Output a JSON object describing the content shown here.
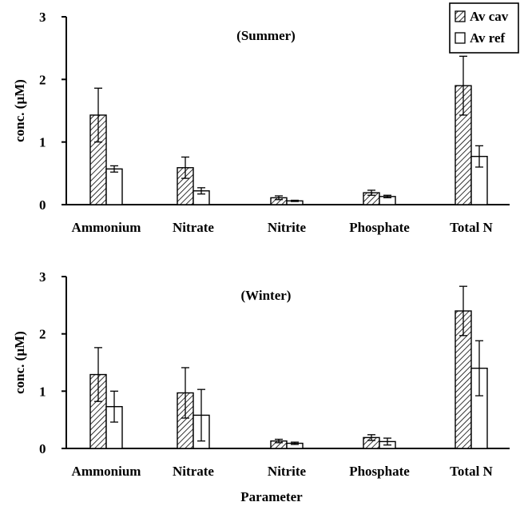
{
  "chart_data": [
    {
      "type": "bar",
      "title": "(Summer)",
      "ylabel": "conc. (µM)",
      "xlabel": "",
      "ylim": [
        0,
        3
      ],
      "yticks": [
        "0",
        "1",
        "2",
        "3"
      ],
      "categories": [
        "Ammonium",
        "Nitrate",
        "Nitrite",
        "Phosphate",
        "Total N"
      ],
      "series": [
        {
          "name": "Av cav",
          "values": [
            1.43,
            0.59,
            0.11,
            0.19,
            1.9
          ],
          "errors": [
            0.43,
            0.17,
            0.03,
            0.04,
            0.47
          ]
        },
        {
          "name": "Av ref",
          "values": [
            0.57,
            0.22,
            0.06,
            0.13,
            0.77
          ],
          "errors": [
            0.05,
            0.05,
            0.01,
            0.02,
            0.17
          ]
        }
      ],
      "legend": {
        "position": "top-right"
      }
    },
    {
      "type": "bar",
      "title": "(Winter)",
      "ylabel": "conc. (µM)",
      "xlabel": "Parameter",
      "ylim": [
        0,
        3
      ],
      "yticks": [
        "0",
        "1",
        "2",
        "3"
      ],
      "categories": [
        "Ammonium",
        "Nitrate",
        "Nitrite",
        "Phosphate",
        "Total N"
      ],
      "series": [
        {
          "name": "Av cav",
          "values": [
            1.29,
            0.97,
            0.13,
            0.19,
            2.4
          ],
          "errors": [
            0.47,
            0.44,
            0.03,
            0.05,
            0.43
          ]
        },
        {
          "name": "Av ref",
          "values": [
            0.73,
            0.58,
            0.09,
            0.12,
            1.4
          ],
          "errors": [
            0.27,
            0.45,
            0.02,
            0.06,
            0.48
          ]
        }
      ]
    }
  ]
}
